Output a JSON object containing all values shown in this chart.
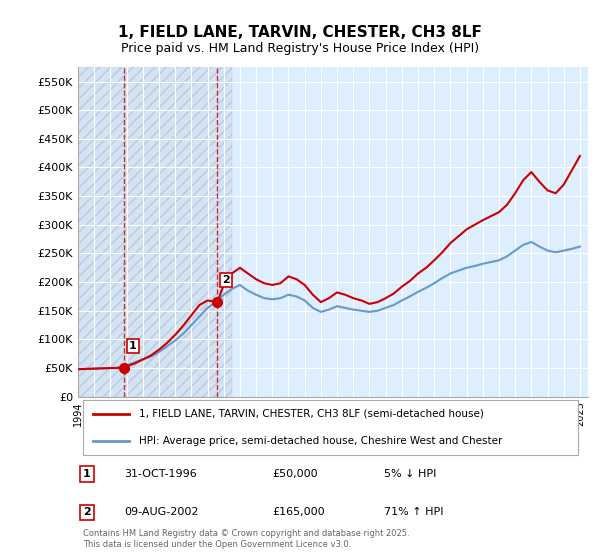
{
  "title": "1, FIELD LANE, TARVIN, CHESTER, CH3 8LF",
  "subtitle": "Price paid vs. HM Land Registry's House Price Index (HPI)",
  "legend_line1": "1, FIELD LANE, TARVIN, CHESTER, CH3 8LF (semi-detached house)",
  "legend_line2": "HPI: Average price, semi-detached house, Cheshire West and Chester",
  "footnote": "Contains HM Land Registry data © Crown copyright and database right 2025.\nThis data is licensed under the Open Government Licence v3.0.",
  "table": [
    {
      "num": "1",
      "date": "31-OCT-1996",
      "price": "£50,000",
      "hpi": "5% ↓ HPI"
    },
    {
      "num": "2",
      "date": "09-AUG-2002",
      "price": "£165,000",
      "hpi": "71% ↑ HPI"
    }
  ],
  "sale_dates": [
    "1996-10-31",
    "2002-08-09"
  ],
  "sale_prices": [
    50000,
    165000
  ],
  "ylim": [
    0,
    575000
  ],
  "yticks": [
    0,
    50000,
    100000,
    150000,
    200000,
    250000,
    300000,
    350000,
    400000,
    450000,
    500000,
    550000
  ],
  "ytick_labels": [
    "£0",
    "£50K",
    "£100K",
    "£150K",
    "£200K",
    "£250K",
    "£300K",
    "£350K",
    "£400K",
    "£450K",
    "£500K",
    "£550K"
  ],
  "price_color": "#cc0000",
  "hpi_color": "#6699cc",
  "vline_color": "#cc0000",
  "background_color": "#ffffff",
  "plot_bg_color": "#ddeeff",
  "grid_color": "#ffffff",
  "hpi_data_x": [
    1994,
    1994.5,
    1995,
    1995.5,
    1996,
    1996.5,
    1997,
    1997.5,
    1998,
    1998.5,
    1999,
    1999.5,
    2000,
    2000.5,
    2001,
    2001.5,
    2002,
    2002.5,
    2003,
    2003.5,
    2004,
    2004.5,
    2005,
    2005.5,
    2006,
    2006.5,
    2007,
    2007.5,
    2008,
    2008.5,
    2009,
    2009.5,
    2010,
    2010.5,
    2011,
    2011.5,
    2012,
    2012.5,
    2013,
    2013.5,
    2014,
    2014.5,
    2015,
    2015.5,
    2016,
    2016.5,
    2017,
    2017.5,
    2018,
    2018.5,
    2019,
    2019.5,
    2020,
    2020.5,
    2021,
    2021.5,
    2022,
    2022.5,
    2023,
    2023.5,
    2024,
    2024.5,
    2025
  ],
  "hpi_data_y": [
    48000,
    48500,
    49000,
    49500,
    50000,
    51000,
    55000,
    60000,
    65000,
    70000,
    78000,
    88000,
    98000,
    110000,
    125000,
    140000,
    155000,
    165000,
    178000,
    188000,
    195000,
    185000,
    178000,
    172000,
    170000,
    172000,
    178000,
    175000,
    168000,
    155000,
    148000,
    152000,
    158000,
    155000,
    152000,
    150000,
    148000,
    150000,
    155000,
    160000,
    168000,
    175000,
    183000,
    190000,
    198000,
    207000,
    215000,
    220000,
    225000,
    228000,
    232000,
    235000,
    238000,
    245000,
    255000,
    265000,
    270000,
    262000,
    255000,
    252000,
    255000,
    258000,
    262000
  ],
  "price_data_x": [
    1994,
    1994.5,
    1995,
    1995.5,
    1996,
    1996.42,
    1997,
    1997.5,
    1998,
    1998.5,
    1999,
    1999.5,
    2000,
    2000.5,
    2001,
    2001.5,
    2002,
    2002.61,
    2003,
    2003.5,
    2004,
    2004.5,
    2005,
    2005.5,
    2006,
    2006.5,
    2007,
    2007.5,
    2008,
    2008.5,
    2009,
    2009.5,
    2010,
    2010.5,
    2011,
    2011.5,
    2012,
    2012.5,
    2013,
    2013.5,
    2014,
    2014.5,
    2015,
    2015.5,
    2016,
    2016.5,
    2017,
    2017.5,
    2018,
    2018.5,
    2019,
    2019.5,
    2020,
    2020.5,
    2021,
    2021.5,
    2022,
    2022.5,
    2023,
    2023.5,
    2024,
    2024.5,
    2025
  ],
  "price_data_y": [
    48000,
    48500,
    49000,
    49500,
    50000,
    50000,
    53000,
    58000,
    65000,
    72000,
    82000,
    94000,
    108000,
    124000,
    142000,
    160000,
    168000,
    165000,
    195000,
    215000,
    225000,
    215000,
    205000,
    198000,
    195000,
    198000,
    210000,
    205000,
    195000,
    178000,
    165000,
    172000,
    182000,
    178000,
    172000,
    168000,
    162000,
    165000,
    172000,
    180000,
    192000,
    202000,
    215000,
    225000,
    238000,
    252000,
    268000,
    280000,
    292000,
    300000,
    308000,
    315000,
    322000,
    335000,
    355000,
    378000,
    392000,
    375000,
    360000,
    355000,
    370000,
    395000,
    420000
  ],
  "xmin": 1994,
  "xmax": 2025.5
}
